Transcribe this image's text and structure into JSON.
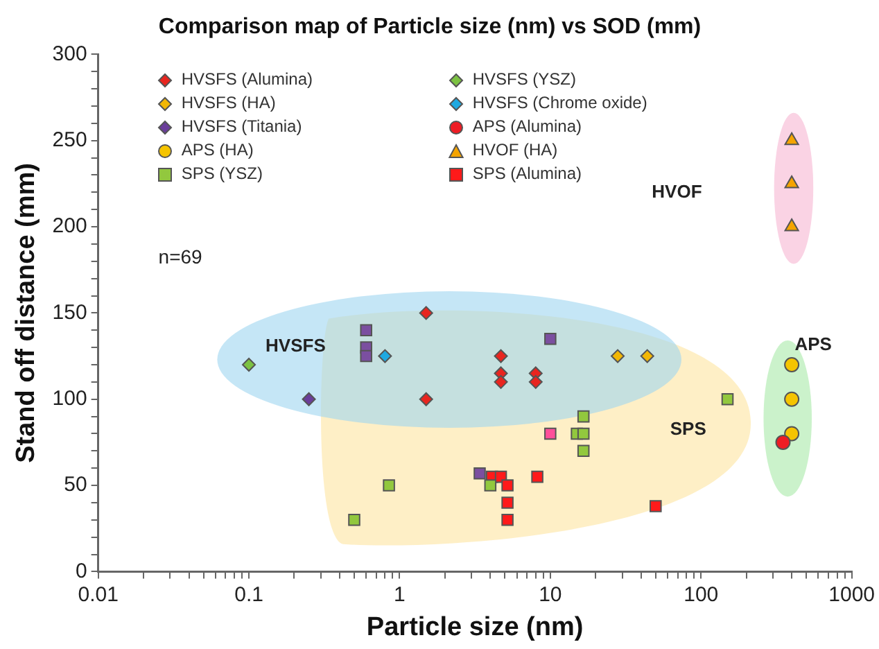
{
  "chart_data": {
    "type": "scatter",
    "title": "Comparison map of Particle size (nm) vs SOD (mm)",
    "xlabel": "Particle size (nm)",
    "ylabel": "Stand off distance (mm)",
    "log": "x",
    "grid": false,
    "legend": "top left",
    "xlim": [
      0.01,
      1000
    ],
    "xticks": [
      0.01,
      {
        "value": 0.02,
        "label": null
      },
      {
        "value": 0.03,
        "label": null
      },
      {
        "value": 0.04,
        "label": null
      },
      {
        "value": 0.05,
        "label": null
      },
      {
        "value": 0.06,
        "label": null
      },
      {
        "value": 0.07,
        "label": null
      },
      {
        "value": 0.08,
        "label": null
      },
      {
        "value": 0.09,
        "label": null
      },
      0.1,
      {
        "value": 0.2,
        "label": null
      },
      {
        "value": 0.3,
        "label": null
      },
      {
        "value": 0.4,
        "label": null
      },
      {
        "value": 0.5,
        "label": null
      },
      {
        "value": 0.6,
        "label": null
      },
      {
        "value": 0.7,
        "label": null
      },
      {
        "value": 0.8,
        "label": null
      },
      {
        "value": 0.9,
        "label": null
      },
      1,
      {
        "value": 2,
        "label": null
      },
      {
        "value": 3,
        "label": null
      },
      {
        "value": 4,
        "label": null
      },
      {
        "value": 5,
        "label": null
      },
      {
        "value": 6,
        "label": null
      },
      {
        "value": 7,
        "label": null
      },
      {
        "value": 8,
        "label": null
      },
      {
        "value": 9,
        "label": null
      },
      10,
      {
        "value": 20,
        "label": null
      },
      {
        "value": 30,
        "label": null
      },
      {
        "value": 40,
        "label": null
      },
      {
        "value": 50,
        "label": null
      },
      {
        "value": 60,
        "label": null
      },
      {
        "value": 70,
        "label": null
      },
      {
        "value": 80,
        "label": null
      },
      {
        "value": 90,
        "label": null
      },
      100,
      {
        "value": 200,
        "label": null
      },
      {
        "value": 300,
        "label": null
      },
      {
        "value": 400,
        "label": null
      },
      {
        "value": 500,
        "label": null
      },
      {
        "value": 600,
        "label": null
      },
      {
        "value": 700,
        "label": null
      },
      {
        "value": 800,
        "label": null
      },
      {
        "value": 900,
        "label": null
      },
      1000
    ],
    "ylim": [
      0,
      300
    ],
    "yticks": [
      0,
      {
        "value": 10,
        "label": null
      },
      {
        "value": 20,
        "label": null
      },
      {
        "value": 30,
        "label": null
      },
      {
        "value": 40,
        "label": null
      },
      50,
      {
        "value": 60,
        "label": null
      },
      {
        "value": 70,
        "label": null
      },
      {
        "value": 80,
        "label": null
      },
      {
        "value": 90,
        "label": null
      },
      100,
      {
        "value": 110,
        "label": null
      },
      {
        "value": 120,
        "label": null
      },
      {
        "value": 130,
        "label": null
      },
      {
        "value": 140,
        "label": null
      },
      150,
      {
        "value": 160,
        "label": null
      },
      {
        "value": 170,
        "label": null
      },
      {
        "value": 180,
        "label": null
      },
      {
        "value": 190,
        "label": null
      },
      200,
      {
        "value": 210,
        "label": null
      },
      {
        "value": 220,
        "label": null
      },
      {
        "value": 230,
        "label": null
      },
      {
        "value": 240,
        "label": null
      },
      250,
      {
        "value": 260,
        "label": null
      },
      {
        "value": 270,
        "label": null
      },
      {
        "value": 280,
        "label": null
      },
      {
        "value": 290,
        "label": null
      },
      300
    ],
    "series": [
      {
        "name": "HVSFS (Alumina)",
        "color": "#e8251f",
        "marker": "diamond",
        "x": [
          1.5,
          1.5,
          4.7,
          4.7,
          4.7,
          8,
          8
        ],
        "values": [
          150,
          100,
          125,
          115,
          110,
          115,
          110
        ]
      },
      {
        "name": "HVSFS (YSZ)",
        "color": "#7cc242",
        "marker": "diamond",
        "x": [
          0.1
        ],
        "values": [
          120
        ]
      },
      {
        "name": "HVSFS (HA)",
        "color": "#f2b705",
        "marker": "diamond",
        "x": [
          28,
          44
        ],
        "values": [
          125,
          125
        ]
      },
      {
        "name": "HVSFS (Chrome oxide)",
        "color": "#1fa9e1",
        "marker": "diamond",
        "x": [
          0.8
        ],
        "values": [
          125
        ]
      },
      {
        "name": "HVSFS (Titania)",
        "color": "#6a3d9a",
        "marker": "diamond",
        "x": [
          0.25
        ],
        "values": [
          100
        ]
      },
      {
        "name": "APS (Alumina)",
        "color": "#ee1c24",
        "marker": "circle",
        "x": [
          350
        ],
        "values": [
          75
        ]
      },
      {
        "name": "APS (HA)",
        "color": "#f5c400",
        "marker": "circle",
        "x": [
          400,
          400,
          400
        ],
        "values": [
          120,
          100,
          80
        ]
      },
      {
        "name": "HVOF (HA)",
        "color": "#f5a400",
        "marker": "triangle",
        "x": [
          400,
          400,
          400
        ],
        "values": [
          250,
          225,
          200
        ]
      },
      {
        "name": "SPS (YSZ)",
        "color": "#92c83e",
        "marker": "square",
        "x": [
          0.5,
          0.85,
          4,
          15,
          16.6,
          16.6,
          16.6,
          150
        ],
        "values": [
          30,
          50,
          50,
          80,
          90,
          80,
          70,
          100
        ]
      },
      {
        "name": "SPS (Alumina)",
        "color": "#ff1a1a",
        "marker": "square",
        "x": [
          4.1,
          4.7,
          5.2,
          5.2,
          5.2,
          8.2,
          50
        ],
        "values": [
          55,
          55,
          50,
          40,
          30,
          55,
          38
        ]
      },
      {
        "color": "#7b4fa0",
        "marker": "square",
        "x": [
          0.6,
          0.6,
          0.6,
          3.4,
          10
        ],
        "values": [
          140,
          130,
          125,
          57,
          135
        ]
      },
      {
        "color": "#ff4f9a",
        "marker": "square",
        "x": [
          10
        ],
        "values": [
          80
        ]
      }
    ],
    "annotations": [
      "n=69",
      "HVSFS",
      "SPS",
      "APS",
      "HVOF"
    ]
  }
}
